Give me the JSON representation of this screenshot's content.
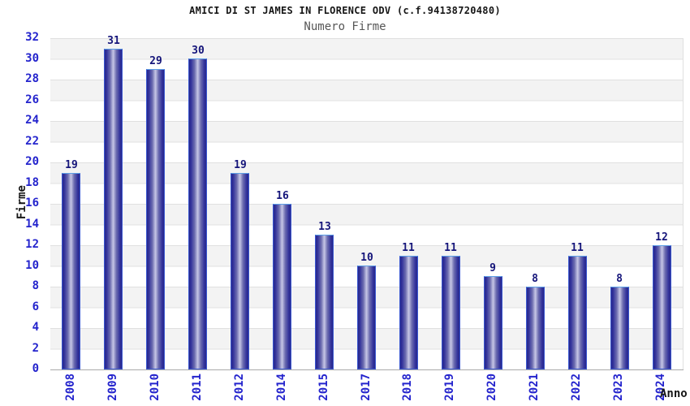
{
  "chart_data": {
    "type": "bar",
    "title": "AMICI DI ST JAMES IN FLORENCE ODV (c.f.94138720480)",
    "subtitle": "Numero Firme",
    "xlabel": "Anno",
    "ylabel": "Firme",
    "categories": [
      "2008",
      "2009",
      "2010",
      "2011",
      "2012",
      "2014",
      "2015",
      "2017",
      "2018",
      "2019",
      "2020",
      "2021",
      "2022",
      "2023",
      "2024"
    ],
    "values": [
      19,
      31,
      29,
      30,
      19,
      16,
      13,
      10,
      11,
      11,
      9,
      8,
      11,
      8,
      12
    ],
    "ylim": [
      0,
      32
    ],
    "yticks": [
      0,
      2,
      4,
      6,
      8,
      10,
      12,
      14,
      16,
      18,
      20,
      22,
      24,
      26,
      28,
      30,
      32
    ],
    "grid": "horizontal-bands",
    "legend": "none",
    "colors": {
      "tick_label": "#2424cd",
      "value_label": "#15157a",
      "band": "#f3f3f3",
      "gridline": "#e0e0e0",
      "bar_edge_dark": "#28288a",
      "bar_center_light": "#c7c7e6",
      "bar_border": "#3a57d0",
      "bar_border_top": "#5d9fe6"
    }
  }
}
